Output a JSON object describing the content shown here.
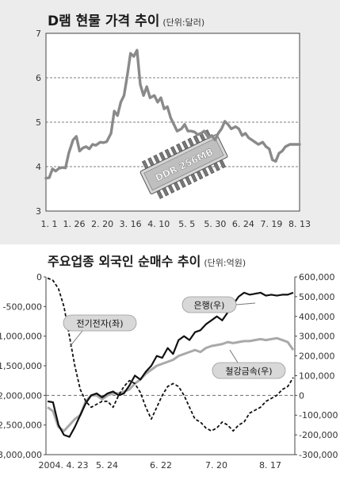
{
  "chart_data": [
    {
      "type": "line",
      "title": "D램 현물 가격 추이",
      "unit": "(단위:달러)",
      "ylim": [
        3,
        7
      ],
      "yticks": [
        "3",
        "4",
        "5",
        "6",
        "7"
      ],
      "x_tick_labels": [
        "1. 1",
        "1. 26",
        "2. 20",
        "3. 16",
        "4. 10",
        "5. 5",
        "5. 30",
        "6. 24",
        "7. 19",
        "8. 13"
      ],
      "grid": "dashed horizontal",
      "legend": "none",
      "annotation": "DDR 256MB",
      "series": [
        {
          "x": [
            "2004-01-01",
            "2004-01-04",
            "2004-01-07",
            "2004-01-10",
            "2004-01-13",
            "2004-01-16",
            "2004-01-19",
            "2004-01-22",
            "2004-01-26",
            "2004-01-29",
            "2004-02-01",
            "2004-02-04",
            "2004-02-07",
            "2004-02-10",
            "2004-02-13",
            "2004-02-16",
            "2004-02-20",
            "2004-02-23",
            "2004-02-26",
            "2004-03-01",
            "2004-03-04",
            "2004-03-07",
            "2004-03-10",
            "2004-03-13",
            "2004-03-16",
            "2004-03-19",
            "2004-03-22",
            "2004-03-25",
            "2004-03-28",
            "2004-03-31",
            "2004-04-03",
            "2004-04-06",
            "2004-04-10",
            "2004-04-13",
            "2004-04-16",
            "2004-04-19",
            "2004-04-22",
            "2004-04-25",
            "2004-04-28",
            "2004-05-01",
            "2004-05-05",
            "2004-05-08",
            "2004-05-11",
            "2004-05-14",
            "2004-05-17",
            "2004-05-20",
            "2004-05-23",
            "2004-05-26",
            "2004-05-30",
            "2004-06-02",
            "2004-06-05",
            "2004-06-08",
            "2004-06-11",
            "2004-06-14",
            "2004-06-17",
            "2004-06-20",
            "2004-06-24",
            "2004-06-27",
            "2004-06-30",
            "2004-07-03",
            "2004-07-06",
            "2004-07-09",
            "2004-07-12",
            "2004-07-15",
            "2004-07-19",
            "2004-07-22",
            "2004-07-25",
            "2004-07-28",
            "2004-07-31",
            "2004-08-03",
            "2004-08-06",
            "2004-08-09",
            "2004-08-13",
            "2004-08-16",
            "2004-08-19",
            "2004-08-22"
          ],
          "values": [
            3.74,
            3.75,
            3.95,
            3.9,
            3.96,
            3.98,
            3.97,
            4.3,
            4.6,
            4.68,
            4.35,
            4.42,
            4.45,
            4.4,
            4.5,
            4.48,
            4.55,
            4.54,
            4.56,
            4.75,
            5.25,
            5.15,
            5.45,
            5.6,
            6.05,
            6.55,
            6.48,
            6.62,
            5.85,
            5.6,
            5.8,
            5.55,
            5.6,
            5.45,
            5.55,
            5.3,
            5.35,
            5.1,
            4.95,
            4.8,
            4.85,
            4.95,
            4.8,
            4.8,
            4.78,
            4.72,
            4.75,
            4.8,
            4.65,
            4.7,
            4.6,
            4.75,
            4.85,
            5.02,
            4.95,
            4.85,
            4.9,
            4.85,
            4.7,
            4.75,
            4.65,
            4.6,
            4.55,
            4.5,
            4.55,
            4.45,
            4.4,
            4.15,
            4.12,
            4.3,
            4.35,
            4.45,
            4.5,
            4.5,
            4.5,
            4.5
          ]
        }
      ]
    },
    {
      "type": "line",
      "title": "주요업종 외국인 순매수 추이",
      "unit": "(단위:억원)",
      "y_left_lim": [
        -3000000,
        0
      ],
      "y_left_ticks": [
        "0",
        "-500,000",
        "-1,000,000",
        "-1,500,000",
        "-2,000,000",
        "-2,500,000",
        "-3,000,000"
      ],
      "y_right_lim": [
        -300000,
        600000
      ],
      "y_right_ticks": [
        "600,000",
        "500,000",
        "400,000",
        "300,000",
        "200,000",
        "100,000",
        "0",
        "-100,000",
        "-200,000",
        "-300,000"
      ],
      "x_tick_labels": [
        "2004. 4. 23",
        "5. 24",
        "6. 22",
        "7. 20",
        "8. 17"
      ],
      "grid": "dashed line at right-axis 0",
      "legend": "callout labels on series",
      "series": [
        {
          "name": "전기전자(좌)",
          "axis": "left",
          "style": "dashed",
          "values": [
            -20000,
            -60000,
            -200000,
            -500000,
            -1000000,
            -1500000,
            -1900000,
            -2100000,
            -2200000,
            -2150000,
            -2100000,
            -2100000,
            -2200000,
            -2000000,
            -1850000,
            -1750000,
            -1800000,
            -1950000,
            -2200000,
            -2400000,
            -2200000,
            -2000000,
            -1850000,
            -1800000,
            -1850000,
            -2000000,
            -2200000,
            -2400000,
            -2450000,
            -2550000,
            -2600000,
            -2550000,
            -2450000,
            -2500000,
            -2600000,
            -2500000,
            -2450000,
            -2300000,
            -2250000,
            -2200000,
            -2100000,
            -2050000,
            -2000000,
            -1900000,
            -1850000,
            -1700000
          ]
        },
        {
          "name": "은행(우)",
          "axis": "right",
          "style": "solid-black",
          "values": [
            -30000,
            -35000,
            -150000,
            -200000,
            -210000,
            -160000,
            -100000,
            -40000,
            0,
            10000,
            -10000,
            10000,
            20000,
            0,
            10000,
            50000,
            100000,
            80000,
            120000,
            150000,
            200000,
            190000,
            240000,
            210000,
            280000,
            300000,
            280000,
            320000,
            330000,
            360000,
            380000,
            400000,
            380000,
            420000,
            460000,
            500000,
            520000,
            510000,
            515000,
            520000,
            505000,
            510000,
            505000,
            510000,
            510000,
            520000
          ]
        },
        {
          "name": "철강금속(우)",
          "axis": "right",
          "style": "solid-gray",
          "values": [
            -60000,
            -80000,
            -160000,
            -180000,
            -150000,
            -120000,
            -100000,
            -30000,
            0,
            0,
            -20000,
            0,
            10000,
            10000,
            20000,
            30000,
            60000,
            80000,
            110000,
            130000,
            150000,
            160000,
            170000,
            180000,
            200000,
            210000,
            220000,
            230000,
            220000,
            240000,
            250000,
            255000,
            260000,
            270000,
            265000,
            270000,
            275000,
            275000,
            280000,
            285000,
            280000,
            285000,
            290000,
            280000,
            270000,
            230000
          ]
        }
      ]
    }
  ]
}
